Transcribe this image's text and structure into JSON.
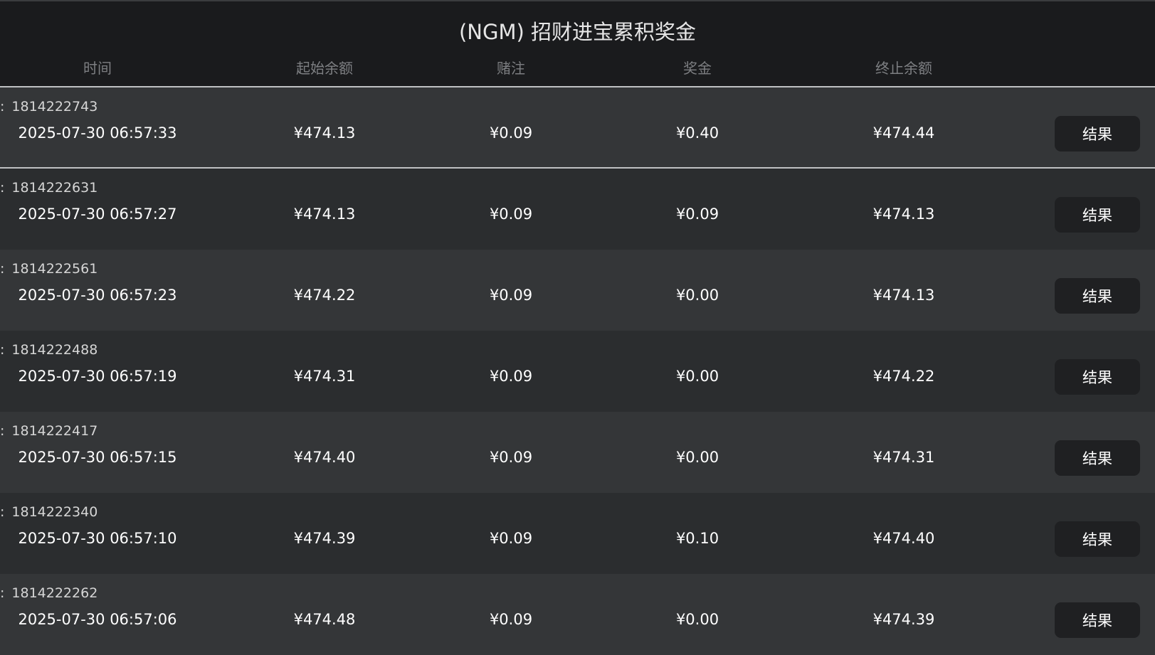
{
  "title": "(NGM) 招财进宝累积奖金",
  "headers": {
    "time": "时间",
    "start_balance": "起始余额",
    "bet": "赌注",
    "prize": "奖金",
    "end_balance": "终止余额"
  },
  "id_label": ":",
  "rows": [
    {
      "id": "1814222743",
      "time": "2025-07-30 06:57:33",
      "start": "¥474.13",
      "bet": "¥0.09",
      "prize": "¥0.40",
      "end": "¥474.44",
      "button": "结果"
    },
    {
      "id": "1814222631",
      "time": "2025-07-30 06:57:27",
      "start": "¥474.13",
      "bet": "¥0.09",
      "prize": "¥0.09",
      "end": "¥474.13",
      "button": "结果"
    },
    {
      "id": "1814222561",
      "time": "2025-07-30 06:57:23",
      "start": "¥474.22",
      "bet": "¥0.09",
      "prize": "¥0.00",
      "end": "¥474.13",
      "button": "结果"
    },
    {
      "id": "1814222488",
      "time": "2025-07-30 06:57:19",
      "start": "¥474.31",
      "bet": "¥0.09",
      "prize": "¥0.00",
      "end": "¥474.22",
      "button": "结果"
    },
    {
      "id": "1814222417",
      "time": "2025-07-30 06:57:15",
      "start": "¥474.40",
      "bet": "¥0.09",
      "prize": "¥0.00",
      "end": "¥474.31",
      "button": "结果"
    },
    {
      "id": "1814222340",
      "time": "2025-07-30 06:57:10",
      "start": "¥474.39",
      "bet": "¥0.09",
      "prize": "¥0.10",
      "end": "¥474.40",
      "button": "结果"
    },
    {
      "id": "1814222262",
      "time": "2025-07-30 06:57:06",
      "start": "¥474.48",
      "bet": "¥0.09",
      "prize": "¥0.00",
      "end": "¥474.39",
      "button": "结果"
    }
  ]
}
